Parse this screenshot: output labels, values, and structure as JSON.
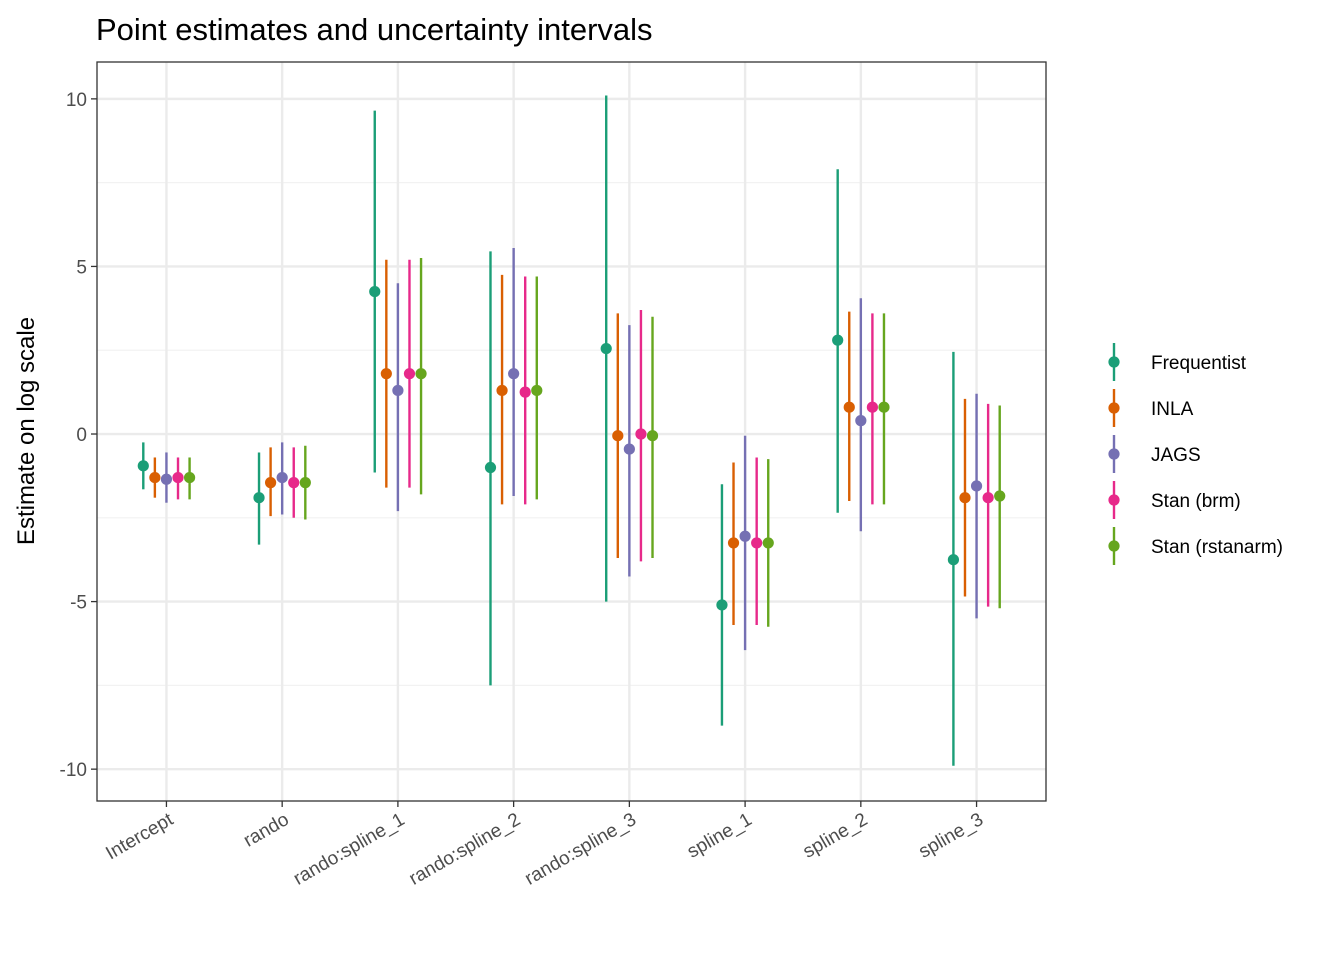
{
  "chart_data": {
    "type": "scatter",
    "title": "Point estimates and uncertainty intervals",
    "xlabel": "",
    "ylabel": "Estimate on log scale",
    "ylim": [
      -10.95,
      11.1
    ],
    "y_ticks": [
      -10,
      -5,
      0,
      5,
      10
    ],
    "y_tick_labels": [
      "-10",
      "-5",
      "0",
      "5",
      "10"
    ],
    "categories": [
      "Intercept",
      "rando",
      "rando:spline_1",
      "rando:spline_2",
      "rando:spline_3",
      "spline_1",
      "spline_2",
      "spline_3"
    ],
    "grid": true,
    "legend": "right",
    "series": [
      {
        "name": "Frequentist",
        "color": "#1b9e77",
        "estimate": [
          -0.95,
          -1.9,
          4.25,
          -1.0,
          2.55,
          -5.1,
          2.8,
          -3.75
        ],
        "lower": [
          -1.65,
          -3.3,
          -1.15,
          -7.5,
          -5.0,
          -8.7,
          -2.35,
          -9.9
        ],
        "upper": [
          -0.25,
          -0.55,
          9.65,
          5.45,
          10.1,
          -1.5,
          7.9,
          2.45
        ]
      },
      {
        "name": "INLA",
        "color": "#d95f02",
        "estimate": [
          -1.3,
          -1.45,
          1.8,
          1.3,
          -0.05,
          -3.25,
          0.8,
          -1.9
        ],
        "lower": [
          -1.9,
          -2.45,
          -1.6,
          -2.1,
          -3.7,
          -5.7,
          -2.0,
          -4.85
        ],
        "upper": [
          -0.7,
          -0.4,
          5.2,
          4.75,
          3.6,
          -0.85,
          3.65,
          1.05
        ]
      },
      {
        "name": "JAGS",
        "color": "#7570b3",
        "estimate": [
          -1.35,
          -1.3,
          1.3,
          1.8,
          -0.45,
          -3.05,
          0.4,
          -1.55
        ],
        "lower": [
          -2.05,
          -2.4,
          -2.3,
          -1.85,
          -4.25,
          -6.45,
          -2.9,
          -5.5
        ],
        "upper": [
          -0.55,
          -0.25,
          4.5,
          5.55,
          3.25,
          -0.05,
          4.05,
          1.2
        ]
      },
      {
        "name": "Stan (brm)",
        "color": "#e7298a",
        "estimate": [
          -1.3,
          -1.45,
          1.8,
          1.25,
          0.0,
          -3.25,
          0.8,
          -1.9
        ],
        "lower": [
          -1.95,
          -2.5,
          -1.6,
          -2.1,
          -3.8,
          -5.7,
          -2.1,
          -5.15
        ],
        "upper": [
          -0.7,
          -0.4,
          5.2,
          4.7,
          3.7,
          -0.7,
          3.6,
          0.9
        ]
      },
      {
        "name": "Stan (rstanarm)",
        "color": "#66a61e",
        "estimate": [
          -1.3,
          -1.45,
          1.8,
          1.3,
          -0.05,
          -3.25,
          0.8,
          -1.85
        ],
        "lower": [
          -1.95,
          -2.55,
          -1.8,
          -1.95,
          -3.7,
          -5.75,
          -2.1,
          -5.2
        ],
        "upper": [
          -0.7,
          -0.35,
          5.25,
          4.7,
          3.5,
          -0.75,
          3.6,
          0.85
        ]
      }
    ]
  }
}
